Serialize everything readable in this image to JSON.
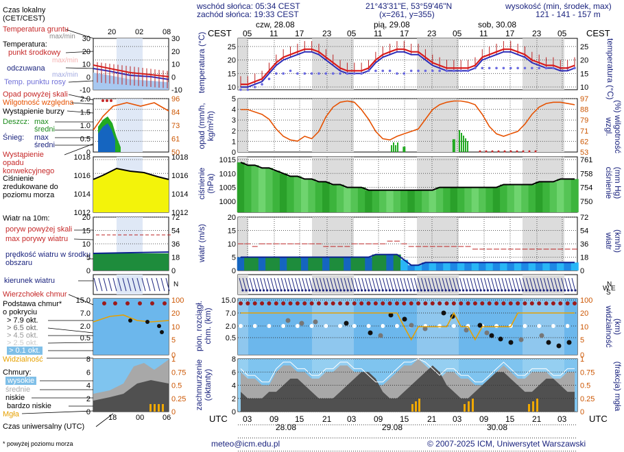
{
  "header": {
    "sunrise": "wschód słońca: 05:34 CEST",
    "sunset": "zachód słońca: 19:33 CEST",
    "coords": "21°43'31\"E, 53°59'46\"N",
    "grid": "(x=261, y=355)",
    "alt_title": "wysokość (min, środek, max)",
    "alt_values": "121 - 141 - 157 m"
  },
  "legend": {
    "local_time": "Czas lokalny",
    "local_time_zone": "(CET/CEST)",
    "ground_temp": "Temperatura gruntu",
    "ground_temp_mm": "max/min",
    "temperature": "Temperatura:",
    "mid_point": "punkt środkowy",
    "max_min": "max/min",
    "felt": "odczuwana",
    "dew_point": "Temp. punktu rosy",
    "precip_over": "Opad powyżej skali",
    "humidity": "Wilgotność względna",
    "storm": "Wystąpienie burzy",
    "rain": "Deszcz:",
    "rain_max": "max",
    "rain_mean": "średni",
    "snow": "Śnieg:",
    "snow_max": "max",
    "snow_mean": "średni",
    "conv_precip": "Wystąpienie opadu konwekcyjnego",
    "pressure": "Ciśnienie zredukowane do poziomu morza",
    "wind": "Wiatr na 10m:",
    "gust_over": "poryw powyżej skali",
    "gust_max": "max porywy wiatru",
    "wind_speed": "prędkość wiatru w środku obszaru",
    "wind_dir": "kierunek wiatru",
    "cloud_top": "Wierzchołek chmur",
    "cloud_base": "Podstawa chmur* o pokryciu",
    "okt79": "> 7.9 okt.",
    "okt65": "> 6.5 okt.",
    "okt45": "> 4.5 okt.",
    "okt25": "> 2.5 okt.",
    "okt01": "> 0.1 okt.",
    "visibility": "Widzialność",
    "clouds": "Chmury:",
    "high": "wysokie",
    "mid": "średnie",
    "low": "niskie",
    "very_low": "bardzo niskie",
    "fog": "Mgła",
    "utc_time": "Czas uniwersalny (UTC)",
    "footnote": "* powyżej poziomu morza"
  },
  "axes": {
    "cest": "CEST",
    "utc": "UTC",
    "temp_label": "temperatura (°C)",
    "precip_label": "opad (mm/h, kg/m²/h)",
    "humid_label": "(%) wilgotność wzgl.",
    "press_label": "ciśnienie (hPa)",
    "press_label_r": "(mm Hg) ciśnienie",
    "wind_label": "wiatr (m/s)",
    "wind_label_r": "(km/h) wiatr",
    "cloud_label": "pion. rozciągł. chm. (km)",
    "vis_label": "(km) widzialność",
    "cover_label": "zachmurzenie (oktanty)",
    "fog_label": "(frakcja) mgła"
  },
  "days_top": [
    {
      "label": "czw, 28.08"
    },
    {
      "label": "pią, 29.08"
    },
    {
      "label": "sob, 30.08"
    }
  ],
  "days_bottom": [
    "28.08",
    "29.08",
    "30.08"
  ],
  "hours_cest": [
    "05",
    "11",
    "17",
    "23",
    "05",
    "11",
    "17",
    "23",
    "05",
    "11",
    "17",
    "23",
    "05"
  ],
  "hours_utc": [
    "03",
    "09",
    "15",
    "21",
    "03",
    "09",
    "15",
    "21",
    "03",
    "09",
    "15",
    "21",
    "03"
  ],
  "mini_hours_top": [
    "20",
    "02",
    "08"
  ],
  "mini_hours_bottom": [
    "18",
    "00",
    "06"
  ],
  "footer": {
    "email": "meteo@icm.edu.pl",
    "copyright": "© 2007-2025 ICM, Uniwersytet Warszawski"
  },
  "colors": {
    "accent": "#1a237e",
    "temp": "#d81b1b",
    "humid": "#e65100",
    "wind": "#0a1f8f",
    "precip": "#22aa22"
  },
  "chart_data": [
    {
      "type": "line",
      "title": "temperatura",
      "ylabel": "temperatura (°C)",
      "ylim": [
        9,
        28
      ],
      "ticks_left": [
        "10",
        "15",
        "20",
        "25"
      ],
      "ticks_right": [
        "10",
        "15",
        "20",
        "25"
      ],
      "series": [
        {
          "name": "temperatura punkt środkowy",
          "values": [
            11,
            11,
            12,
            13,
            16,
            19,
            21,
            22,
            23,
            24,
            24,
            23,
            21,
            19,
            17,
            16,
            16,
            16,
            17,
            20,
            22,
            23,
            24,
            24,
            23,
            23,
            21,
            19,
            18,
            17,
            17,
            17,
            17,
            18,
            21,
            22,
            23,
            24,
            24,
            23,
            22,
            20,
            19,
            18,
            18,
            17,
            17,
            18
          ]
        },
        {
          "name": "temperatura odczuwana",
          "values": [
            10,
            10,
            11,
            12,
            15,
            18,
            20,
            21,
            22,
            23,
            23,
            22,
            20,
            18,
            16,
            15,
            15,
            15,
            16,
            19,
            21,
            22,
            23,
            23,
            22,
            22,
            20,
            18,
            17,
            16,
            16,
            16,
            16,
            17,
            20,
            21,
            22,
            23,
            23,
            22,
            21,
            19,
            18,
            17,
            17,
            16,
            16,
            17
          ]
        },
        {
          "name": "temperatura punktu rosy",
          "values": [
            9,
            9,
            10,
            11,
            13,
            15,
            15,
            16,
            15,
            15,
            15,
            15,
            15,
            15,
            15,
            15,
            15,
            15,
            16,
            16,
            16,
            16,
            15,
            15,
            16,
            16,
            16,
            16,
            16,
            16,
            16,
            16,
            16,
            17,
            17,
            17,
            17,
            17,
            17,
            17,
            17,
            17,
            17,
            17,
            17,
            17,
            17,
            17
          ]
        }
      ]
    },
    {
      "type": "line",
      "title": "opad i wilgotność",
      "ylabel": "opad (mm/h)",
      "ylim": [
        0,
        5
      ],
      "ticks_left": [
        "0",
        "1",
        "2",
        "3",
        "4",
        "5"
      ],
      "ticks_right": [
        "53",
        "62",
        "71",
        "79",
        "88",
        "97"
      ],
      "series": [
        {
          "name": "wilgotność względna",
          "values": [
            88,
            88,
            86,
            84,
            80,
            72,
            66,
            63,
            62,
            66,
            64,
            70,
            82,
            90,
            94,
            95,
            94,
            88,
            80,
            70,
            64,
            63,
            66,
            68,
            70,
            72,
            80,
            88,
            92,
            94,
            95,
            95,
            94,
            92,
            84,
            74,
            68,
            66,
            68,
            70,
            76,
            84,
            90,
            93,
            94,
            94,
            93,
            92
          ]
        },
        {
          "name": "opad średni",
          "values": [
            0,
            0,
            0,
            0,
            0,
            0,
            0,
            0,
            0,
            0,
            0,
            0,
            0,
            0,
            0,
            0,
            0,
            0,
            0,
            0,
            0,
            0,
            0,
            0.5,
            0,
            0,
            0,
            0,
            0,
            0,
            1.2,
            0,
            0,
            0,
            0,
            0,
            0,
            0,
            0,
            0,
            0,
            0,
            0,
            0,
            0,
            0,
            0,
            0
          ]
        }
      ]
    },
    {
      "type": "area",
      "title": "ciśnienie",
      "ylabel": "ciśnienie (hPa)",
      "ylim": [
        996,
        1016
      ],
      "ticks_left": [
        "1000",
        "1005",
        "1010",
        "1015"
      ],
      "ticks_right": [
        "750",
        "754",
        "758",
        "761"
      ],
      "series": [
        {
          "name": "ciśnienie",
          "values": [
            1014,
            1013,
            1013,
            1012,
            1012,
            1011,
            1010,
            1009,
            1009,
            1008,
            1008,
            1007,
            1007,
            1006,
            1006,
            1005,
            1005,
            1005,
            1004,
            1004,
            1004,
            1004,
            1004,
            1004,
            1004,
            1004,
            1004,
            1004,
            1005,
            1005,
            1005,
            1005,
            1005,
            1005,
            1005,
            1005,
            1005,
            1006,
            1006,
            1006,
            1006,
            1006,
            1007,
            1007,
            1007,
            1008,
            1008,
            1008
          ]
        }
      ]
    },
    {
      "type": "line",
      "title": "wiatr",
      "ylabel": "wiatr (m/s)",
      "ylim": [
        0,
        20
      ],
      "ticks_left": [
        "0",
        "5",
        "10",
        "15",
        "20"
      ],
      "ticks_right": [
        "0",
        "18",
        "36",
        "54",
        "72"
      ],
      "series": [
        {
          "name": "max porywy wiatru",
          "values": [
            10,
            10,
            9,
            10,
            10,
            10,
            10,
            10,
            10,
            10,
            10,
            10,
            9,
            9,
            9,
            9,
            10,
            10,
            10,
            10,
            10,
            11,
            11,
            10,
            9,
            9,
            9,
            9,
            9,
            9,
            9,
            9,
            9,
            8,
            8,
            8,
            8,
            8,
            8,
            8,
            8,
            8,
            8,
            8,
            8,
            8,
            8,
            8
          ]
        },
        {
          "name": "prędkość wiatru",
          "values": [
            5,
            5,
            5,
            5,
            5,
            5,
            5,
            5,
            5,
            5,
            5,
            5,
            5,
            5,
            5,
            5,
            5,
            5,
            5,
            6,
            6,
            6,
            6,
            4,
            2,
            2,
            3,
            3,
            3,
            3,
            3,
            3,
            3,
            3,
            3,
            3,
            3,
            3,
            3,
            3,
            3,
            3,
            3,
            3,
            3,
            3,
            3,
            3
          ]
        }
      ]
    },
    {
      "type": "line",
      "title": "chmury i widzialność",
      "ylabel": "pion. rozciągł. chm. (km)",
      "ylim": [
        0,
        15
      ],
      "ticks_left": [
        "0.5",
        "2.0",
        "7.0",
        "15.0"
      ],
      "ticks_right": [
        "0",
        "5",
        "10",
        "20",
        "100"
      ],
      "series": [
        {
          "name": "widzialność",
          "values": [
            20,
            20,
            20,
            20,
            20,
            20,
            20,
            20,
            20,
            20,
            20,
            20,
            20,
            20,
            20,
            20,
            20,
            20,
            20,
            20,
            20,
            20,
            20,
            18,
            8,
            10,
            14,
            16,
            16,
            16,
            20,
            18,
            10,
            8,
            10,
            12,
            14,
            16,
            18,
            20,
            20,
            20,
            20,
            20,
            20,
            20,
            20,
            20
          ]
        }
      ]
    },
    {
      "type": "area",
      "title": "zachmurzenie",
      "ylabel": "zachmurzenie (oktanty)",
      "ylim": [
        0,
        8
      ],
      "ticks_left": [
        "0",
        "2",
        "4",
        "6",
        "8"
      ],
      "ticks_right": [
        "0",
        "0.25",
        "0.5",
        "0.75",
        "1"
      ],
      "series": [
        {
          "name": "wysokie",
          "values": [
            6,
            5,
            5,
            4,
            4,
            6,
            7,
            7,
            6,
            6,
            5,
            5,
            6,
            6,
            7,
            7,
            6,
            6,
            5,
            4,
            4,
            5,
            6,
            7,
            7,
            8,
            7,
            6,
            5,
            6,
            6,
            5,
            5,
            4,
            4,
            5,
            6,
            7,
            6,
            5,
            5,
            6,
            6,
            6,
            5,
            5,
            6,
            6
          ]
        },
        {
          "name": "niskie",
          "values": [
            3,
            2,
            2,
            2,
            3,
            3,
            4,
            5,
            5,
            4,
            3,
            2,
            2,
            2,
            3,
            4,
            5,
            6,
            6,
            5,
            3,
            2,
            2,
            3,
            4,
            5,
            6,
            7,
            6,
            4,
            3,
            2,
            2,
            3,
            4,
            5,
            6,
            6,
            5,
            4,
            3,
            3,
            4,
            5,
            5,
            4,
            3,
            3
          ]
        }
      ]
    }
  ]
}
